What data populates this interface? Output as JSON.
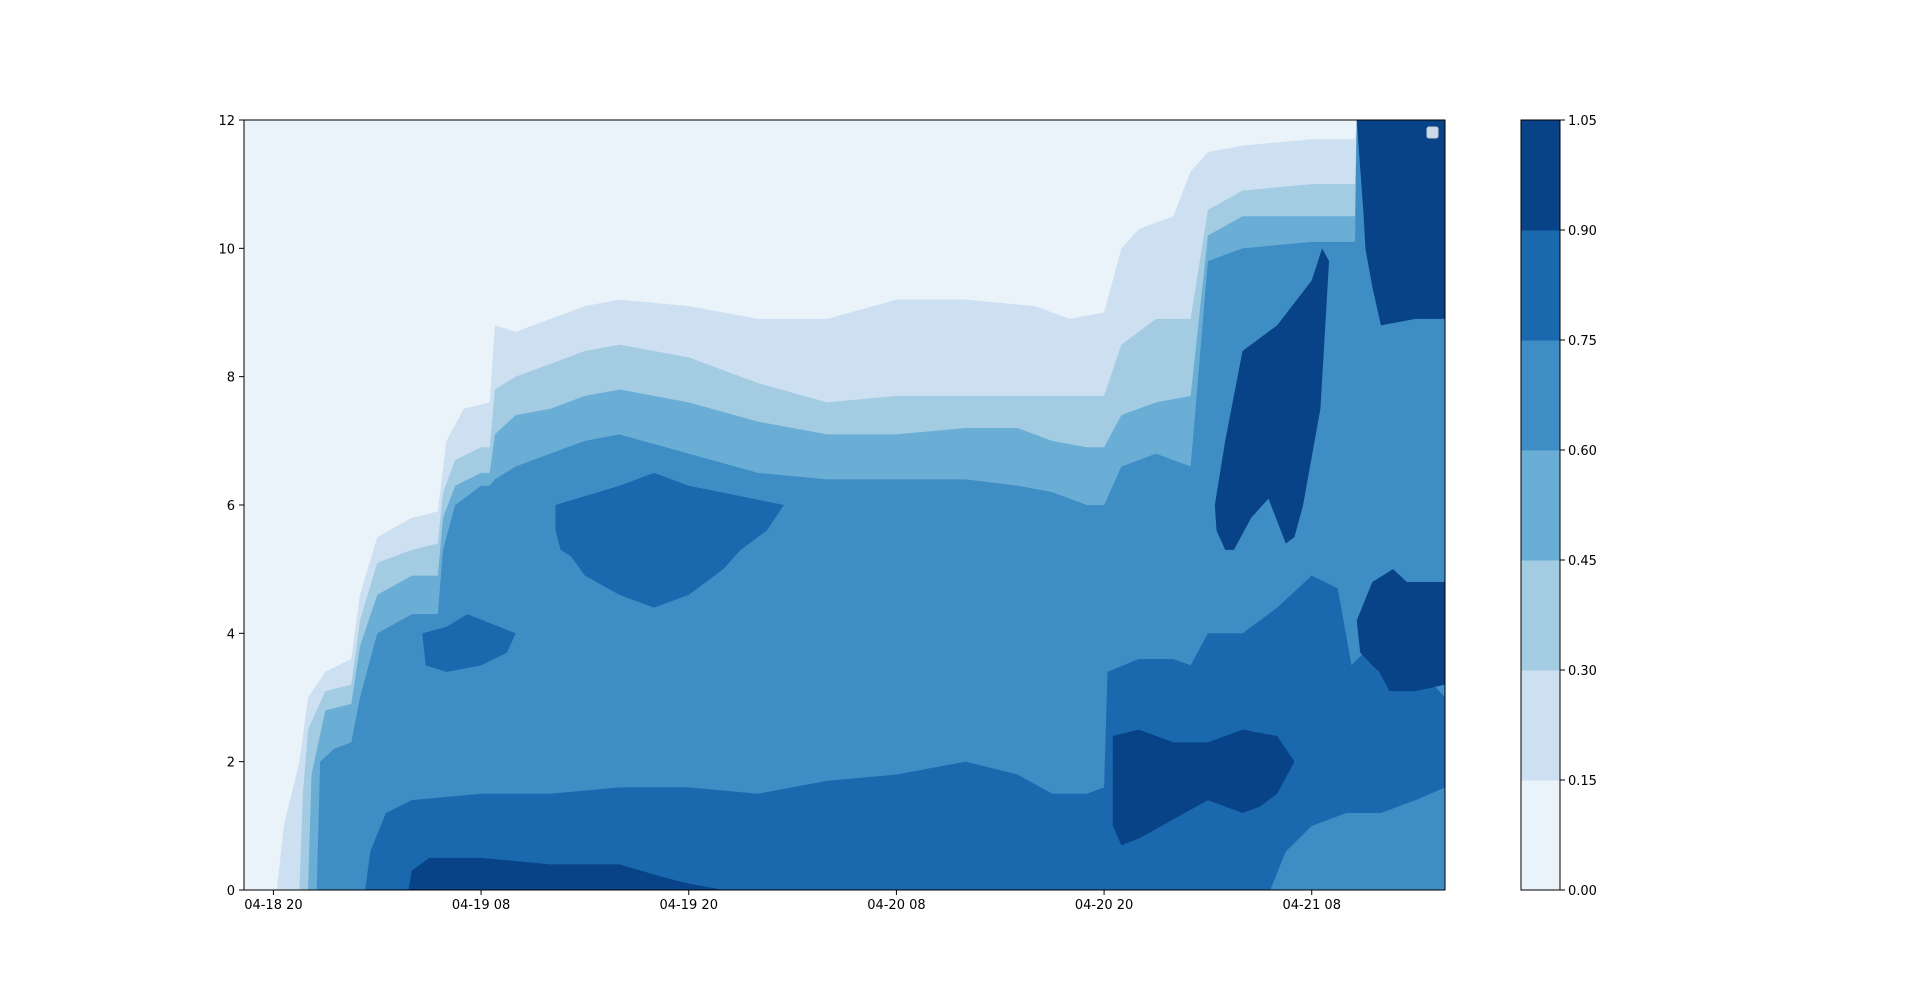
{
  "chart_data": {
    "type": "heatmap",
    "subtype": "filled-contour",
    "colormap": "Blues",
    "x_tick_labels": [
      "04-18 20",
      "04-19 08",
      "04-19 20",
      "04-20 08",
      "04-20 20",
      "04-21 08"
    ],
    "x_ticks_hours": [
      0,
      12,
      24,
      36,
      48,
      60
    ],
    "xlim_hours": [
      -1.7,
      67.7
    ],
    "y_tick_labels": [
      "0",
      "2",
      "4",
      "6",
      "8",
      "10",
      "12"
    ],
    "y_ticks": [
      0,
      2,
      4,
      6,
      8,
      10,
      12
    ],
    "ylim": [
      0,
      12
    ],
    "levels": [
      0.0,
      0.15,
      0.3,
      0.45,
      0.6,
      0.75,
      0.9,
      1.05
    ],
    "level_labels": [
      "0.00",
      "0.15",
      "0.30",
      "0.45",
      "0.60",
      "0.75",
      "0.90",
      "1.05"
    ],
    "level_colors": [
      "#eaf2fa",
      "#cde0f1",
      "#a3cce3",
      "#6aaed6",
      "#3e8dc4",
      "#1a68ae",
      "#084287"
    ],
    "contour_boundaries": [
      {
        "level": 0.15,
        "points": [
          [
            0.2,
            0
          ],
          [
            0.6,
            1
          ],
          [
            1.5,
            2
          ],
          [
            2,
            3
          ],
          [
            3,
            3.4
          ],
          [
            4.5,
            3.6
          ],
          [
            5,
            4.6
          ],
          [
            6,
            5.5
          ],
          [
            8,
            5.8
          ],
          [
            9.5,
            5.9
          ],
          [
            10,
            7
          ],
          [
            11,
            7.5
          ],
          [
            12.5,
            7.6
          ],
          [
            12.8,
            8.8
          ],
          [
            14,
            8.7
          ],
          [
            16,
            8.9
          ],
          [
            18,
            9.1
          ],
          [
            20,
            9.2
          ],
          [
            24,
            9.1
          ],
          [
            28,
            8.9
          ],
          [
            32,
            8.9
          ],
          [
            36,
            9.2
          ],
          [
            40,
            9.2
          ],
          [
            44,
            9.1
          ],
          [
            46,
            8.9
          ],
          [
            48,
            9.0
          ],
          [
            49,
            10
          ],
          [
            50,
            10.3
          ],
          [
            52,
            10.5
          ],
          [
            53,
            11.2
          ],
          [
            54,
            11.5
          ],
          [
            56,
            11.6
          ],
          [
            60,
            11.7
          ],
          [
            62.5,
            11.7
          ],
          [
            62.7,
            12
          ]
        ]
      },
      {
        "level": 0.3,
        "points": [
          [
            1.5,
            0
          ],
          [
            1.7,
            1.5
          ],
          [
            2,
            2.5
          ],
          [
            3,
            3.1
          ],
          [
            4.5,
            3.2
          ],
          [
            5,
            4.2
          ],
          [
            6,
            5.1
          ],
          [
            8,
            5.3
          ],
          [
            9.5,
            5.4
          ],
          [
            9.8,
            6.2
          ],
          [
            10.5,
            6.7
          ],
          [
            12,
            6.9
          ],
          [
            12.5,
            6.9
          ],
          [
            12.8,
            7.8
          ],
          [
            14,
            8.0
          ],
          [
            16,
            8.2
          ],
          [
            18,
            8.4
          ],
          [
            20,
            8.5
          ],
          [
            24,
            8.3
          ],
          [
            28,
            7.9
          ],
          [
            32,
            7.6
          ],
          [
            36,
            7.7
          ],
          [
            40,
            7.7
          ],
          [
            44,
            7.7
          ],
          [
            46,
            7.7
          ],
          [
            48,
            7.7
          ],
          [
            49,
            8.5
          ],
          [
            51,
            8.9
          ],
          [
            53,
            8.9
          ],
          [
            54,
            10.6
          ],
          [
            56,
            10.9
          ],
          [
            60,
            11.0
          ],
          [
            62.5,
            11.0
          ],
          [
            62.6,
            12
          ]
        ]
      },
      {
        "level": 0.45,
        "points": [
          [
            2,
            0
          ],
          [
            2.2,
            1.8
          ],
          [
            3,
            2.8
          ],
          [
            4.5,
            2.9
          ],
          [
            5,
            3.8
          ],
          [
            6,
            4.6
          ],
          [
            8,
            4.9
          ],
          [
            9.5,
            4.9
          ],
          [
            9.8,
            5.8
          ],
          [
            10.5,
            6.3
          ],
          [
            12,
            6.5
          ],
          [
            12.5,
            6.5
          ],
          [
            12.8,
            7.1
          ],
          [
            14,
            7.4
          ],
          [
            16,
            7.5
          ],
          [
            18,
            7.7
          ],
          [
            20,
            7.8
          ],
          [
            24,
            7.6
          ],
          [
            28,
            7.3
          ],
          [
            32,
            7.1
          ],
          [
            36,
            7.1
          ],
          [
            40,
            7.2
          ],
          [
            43,
            7.2
          ],
          [
            45,
            7.0
          ],
          [
            47,
            6.9
          ],
          [
            48,
            6.9
          ],
          [
            49,
            7.4
          ],
          [
            51,
            7.6
          ],
          [
            53,
            7.7
          ],
          [
            54,
            10.2
          ],
          [
            56,
            10.5
          ],
          [
            60,
            10.5
          ],
          [
            62.5,
            10.5
          ],
          [
            62.6,
            12
          ]
        ]
      },
      {
        "level": 0.6,
        "points": [
          [
            2.5,
            0
          ],
          [
            2.7,
            2
          ],
          [
            3.5,
            2.2
          ],
          [
            4.5,
            2.3
          ],
          [
            5,
            3
          ],
          [
            6,
            4.0
          ],
          [
            8,
            4.3
          ],
          [
            9.5,
            4.3
          ],
          [
            9.8,
            5.3
          ],
          [
            10.5,
            6.0
          ],
          [
            12,
            6.3
          ],
          [
            12.5,
            6.3
          ],
          [
            12.8,
            6.4
          ],
          [
            14,
            6.6
          ],
          [
            16,
            6.8
          ],
          [
            18,
            7.0
          ],
          [
            20,
            7.1
          ],
          [
            24,
            6.8
          ],
          [
            28,
            6.5
          ],
          [
            32,
            6.4
          ],
          [
            36,
            6.4
          ],
          [
            40,
            6.4
          ],
          [
            43,
            6.3
          ],
          [
            45,
            6.2
          ],
          [
            47,
            6.0
          ],
          [
            48,
            6.0
          ],
          [
            49,
            6.6
          ],
          [
            51,
            6.8
          ],
          [
            53,
            6.6
          ],
          [
            54,
            9.8
          ],
          [
            56,
            10.0
          ],
          [
            60,
            10.1
          ],
          [
            62.5,
            10.1
          ],
          [
            62.6,
            12
          ]
        ]
      },
      {
        "level": 0.75,
        "points": [
          [
            5.3,
            0
          ],
          [
            5.6,
            0.6
          ],
          [
            6.5,
            1.2
          ],
          [
            8,
            1.4
          ],
          [
            12,
            1.5
          ],
          [
            16,
            1.5
          ],
          [
            20,
            1.6
          ],
          [
            24,
            1.6
          ],
          [
            28,
            1.5
          ],
          [
            32,
            1.7
          ],
          [
            36,
            1.8
          ],
          [
            40,
            2.0
          ],
          [
            43,
            1.8
          ],
          [
            45,
            1.5
          ],
          [
            47,
            1.5
          ],
          [
            48,
            1.6
          ],
          [
            48.2,
            3.4
          ],
          [
            50,
            3.6
          ],
          [
            52,
            3.6
          ],
          [
            53,
            3.5
          ],
          [
            54,
            4.0
          ],
          [
            56,
            4.0
          ],
          [
            58,
            4.4
          ],
          [
            60,
            4.9
          ],
          [
            61.5,
            4.7
          ],
          [
            62.3,
            3.5
          ],
          [
            63,
            3.7
          ],
          [
            64,
            3.6
          ],
          [
            66,
            3.5
          ],
          [
            67.7,
            3.0
          ]
        ]
      },
      {
        "level": 0.9,
        "points": [
          [
            7.8,
            0
          ],
          [
            8,
            0.3
          ],
          [
            9,
            0.5
          ],
          [
            12,
            0.5
          ],
          [
            16,
            0.4
          ],
          [
            20,
            0.4
          ],
          [
            22.5,
            0.2
          ],
          [
            24,
            0.1
          ],
          [
            26,
            0
          ]
        ]
      }
    ],
    "contour_islands": [
      {
        "level": 0.75,
        "points": [
          [
            8.6,
            4.0
          ],
          [
            10,
            4.1
          ],
          [
            11.2,
            4.3
          ],
          [
            14,
            4.0
          ],
          [
            13.5,
            3.7
          ],
          [
            12,
            3.5
          ],
          [
            10,
            3.4
          ],
          [
            8.8,
            3.5
          ]
        ]
      },
      {
        "level": 0.75,
        "points": [
          [
            16.3,
            6.0
          ],
          [
            20,
            6.3
          ],
          [
            22,
            6.5
          ],
          [
            24,
            6.3
          ],
          [
            29.5,
            6.0
          ],
          [
            28.5,
            5.6
          ],
          [
            27,
            5.3
          ],
          [
            26,
            5.0
          ],
          [
            24,
            4.6
          ],
          [
            22,
            4.4
          ],
          [
            20,
            4.6
          ],
          [
            18,
            4.9
          ],
          [
            17.2,
            5.2
          ],
          [
            16.6,
            5.3
          ],
          [
            16.3,
            5.6
          ]
        ]
      },
      {
        "level": 0.9,
        "points": [
          [
            48.5,
            2.4
          ],
          [
            50,
            2.5
          ],
          [
            52,
            2.3
          ],
          [
            54,
            2.3
          ],
          [
            56,
            2.5
          ],
          [
            58,
            2.4
          ],
          [
            59,
            2.0
          ],
          [
            58,
            1.5
          ],
          [
            57,
            1.3
          ],
          [
            56,
            1.2
          ],
          [
            54,
            1.4
          ],
          [
            52,
            1.1
          ],
          [
            50,
            0.8
          ],
          [
            49,
            0.7
          ],
          [
            48.5,
            1.0
          ]
        ]
      },
      {
        "level": 0.9,
        "points": [
          [
            54.4,
            6.0
          ],
          [
            55,
            7.0
          ],
          [
            56,
            8.4
          ],
          [
            58,
            8.8
          ],
          [
            60,
            9.5
          ],
          [
            60.6,
            10.0
          ],
          [
            61,
            9.8
          ],
          [
            60.5,
            7.5
          ],
          [
            59.5,
            6.0
          ],
          [
            59,
            5.5
          ],
          [
            58.5,
            5.4
          ],
          [
            57.5,
            6.1
          ],
          [
            56.5,
            5.8
          ],
          [
            55.5,
            5.3
          ],
          [
            55,
            5.3
          ],
          [
            54.5,
            5.6
          ]
        ]
      },
      {
        "level": 0.9,
        "points": [
          [
            62.6,
            12
          ],
          [
            63,
            10.5
          ],
          [
            63.1,
            10.0
          ],
          [
            63.5,
            9.4
          ],
          [
            64,
            8.8
          ],
          [
            66,
            8.9
          ],
          [
            67.7,
            8.9
          ],
          [
            67.7,
            12
          ]
        ]
      },
      {
        "level": 0.9,
        "points": [
          [
            62.6,
            4.2
          ],
          [
            63.5,
            4.8
          ],
          [
            64.7,
            5.0
          ],
          [
            65.5,
            4.8
          ],
          [
            67.7,
            4.8
          ],
          [
            67.7,
            3.2
          ],
          [
            66,
            3.1
          ],
          [
            65,
            3.1
          ],
          [
            64.5,
            3.1
          ],
          [
            63.9,
            3.4
          ],
          [
            63.5,
            3.5
          ],
          [
            62.8,
            3.7
          ]
        ]
      },
      {
        "level": 0.6,
        "points": [
          [
            57.6,
            0
          ],
          [
            58.5,
            0.6
          ],
          [
            60,
            1.0
          ],
          [
            62,
            1.2
          ],
          [
            64,
            1.2
          ],
          [
            66,
            1.4
          ],
          [
            67.7,
            1.6
          ],
          [
            67.7,
            0
          ]
        ]
      }
    ],
    "colorbar_tick_labels": [
      "0.00",
      "0.15",
      "0.30",
      "0.45",
      "0.60",
      "0.75",
      "0.90",
      "1.05"
    ],
    "legend": "top-right (empty)",
    "grid": false
  }
}
